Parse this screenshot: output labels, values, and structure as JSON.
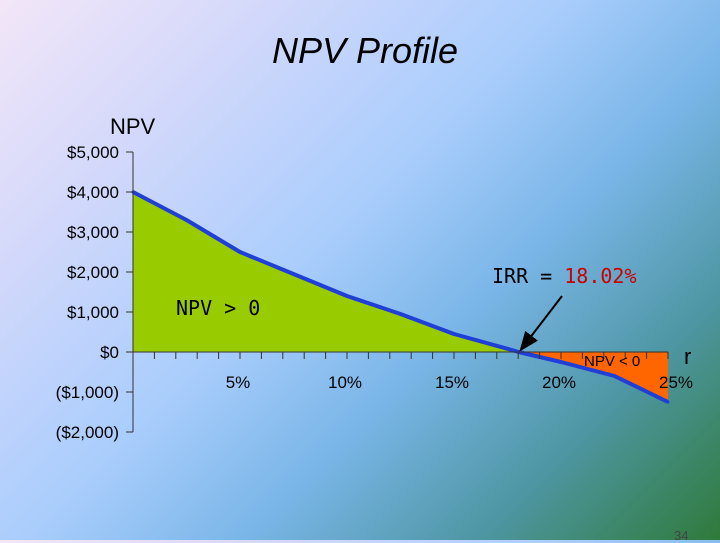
{
  "slide": {
    "title": "NPV Profile",
    "page_number": "34"
  },
  "colors": {
    "positive_fill": "#99cc00",
    "negative_fill": "#ff6600",
    "curve": "#1f3fd8",
    "arrow": "#000000"
  },
  "chart_data": {
    "type": "area",
    "title": "NPV Profile",
    "ylabel": "NPV",
    "xlabel": "r",
    "x": [
      0,
      2.5,
      5,
      7.5,
      10,
      12.5,
      15,
      17.5,
      18.02,
      20,
      22.5,
      25
    ],
    "x_unit": "%",
    "series": [
      {
        "values": [
          4000,
          3300,
          2500,
          1950,
          1400,
          950,
          450,
          80,
          0,
          -250,
          -600,
          -1250
        ]
      }
    ],
    "xlim": [
      0,
      25
    ],
    "ylim": [
      -2000,
      5000
    ],
    "x_ticks": [
      5,
      10,
      15,
      20,
      25
    ],
    "x_tick_labels": [
      "5%",
      "10%",
      "15%",
      "20%",
      "25%"
    ],
    "y_ticks": [
      5000,
      4000,
      3000,
      2000,
      1000,
      0,
      -1000,
      -2000
    ],
    "y_tick_labels": [
      "$5,000",
      "$4,000",
      "$3,000",
      "$2,000",
      "$1,000",
      "$0",
      "($1,000)",
      "($2,000)"
    ],
    "annotations": {
      "irr_prefix": "IRR = ",
      "irr_value": "18.02%",
      "irr_color": "#cc0000",
      "irr_rate": 18.02,
      "positive_label": "NPV > 0",
      "negative_label": "NPV < 0"
    },
    "grid": false,
    "legend": "none"
  }
}
